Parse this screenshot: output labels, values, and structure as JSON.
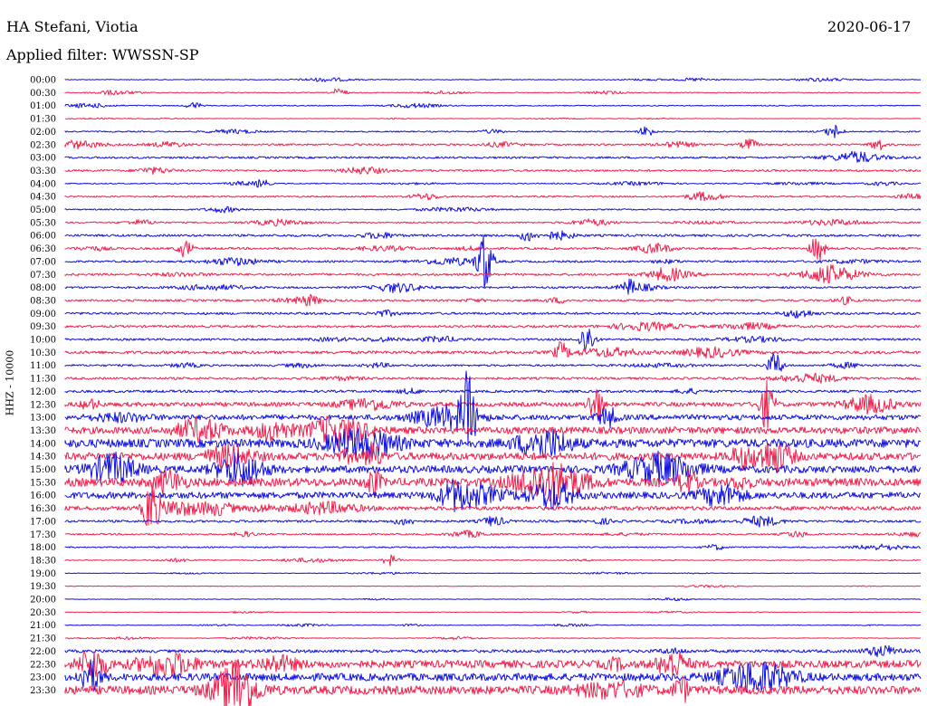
{
  "header": {
    "station": "HA Stefani, Viotia",
    "date": "2020-06-17",
    "filter": "Applied filter: WWSSN-SP"
  },
  "channel_label": "HHZ - 10000",
  "colors": {
    "trace_a": "#1010e0",
    "trace_b": "#f0204c"
  },
  "chart_data": {
    "type": "line",
    "rows": [
      "00:00",
      "00:30",
      "01:00",
      "01:30",
      "02:00",
      "02:30",
      "03:00",
      "03:30",
      "04:00",
      "04:30",
      "05:00",
      "05:30",
      "06:00",
      "06:30",
      "07:00",
      "07:30",
      "08:00",
      "08:30",
      "09:00",
      "09:30",
      "10:00",
      "10:30",
      "11:00",
      "11:30",
      "12:00",
      "12:30",
      "13:00",
      "13:30",
      "14:00",
      "14:30",
      "15:00",
      "15:30",
      "16:00",
      "16:30",
      "17:00",
      "17:30",
      "18:00",
      "18:30",
      "19:00",
      "19:30",
      "20:00",
      "20:30",
      "21:00",
      "21:30",
      "22:00",
      "22:30",
      "23:00",
      "23:30"
    ],
    "row_colors": [
      "blue",
      "red",
      "blue",
      "red",
      "blue",
      "red",
      "blue",
      "red",
      "blue",
      "red",
      "blue",
      "red",
      "blue",
      "red",
      "blue",
      "red",
      "blue",
      "red",
      "blue",
      "red",
      "blue",
      "red",
      "blue",
      "red",
      "blue",
      "red",
      "blue",
      "red",
      "blue",
      "red",
      "blue",
      "red",
      "blue",
      "red",
      "blue",
      "red",
      "blue",
      "red",
      "blue",
      "red",
      "blue",
      "red",
      "blue",
      "red",
      "blue",
      "red",
      "blue",
      "red"
    ],
    "activity": [
      0.5,
      0.5,
      0.6,
      0.3,
      0.8,
      1.1,
      1.2,
      1.2,
      0.7,
      1.0,
      0.8,
      0.9,
      1.4,
      1.3,
      1.2,
      1.4,
      1.2,
      1.3,
      1.4,
      1.4,
      1.3,
      1.8,
      1.2,
      1.4,
      1.5,
      2.6,
      3.2,
      4.2,
      5.2,
      4.6,
      4.4,
      5.0,
      4.0,
      2.4,
      1.4,
      1.0,
      0.8,
      0.6,
      0.3,
      0.3,
      0.4,
      0.3,
      0.4,
      0.4,
      1.8,
      4.6,
      4.6,
      5.2
    ],
    "events": [
      {
        "row": 1,
        "t": 0.32,
        "amp": 5
      },
      {
        "row": 2,
        "t": 0.15,
        "amp": 4
      },
      {
        "row": 4,
        "t": 0.68,
        "amp": 6
      },
      {
        "row": 4,
        "t": 0.9,
        "amp": 6
      },
      {
        "row": 5,
        "t": 0.8,
        "amp": 7
      },
      {
        "row": 5,
        "t": 0.95,
        "amp": 7
      },
      {
        "row": 8,
        "t": 0.23,
        "amp": 5
      },
      {
        "row": 12,
        "t": 0.54,
        "amp": 6
      },
      {
        "row": 13,
        "t": 0.14,
        "amp": 9
      },
      {
        "row": 13,
        "t": 0.88,
        "amp": 14
      },
      {
        "row": 14,
        "t": 0.49,
        "amp": 34
      },
      {
        "row": 16,
        "t": 0.66,
        "amp": 6
      },
      {
        "row": 20,
        "t": 0.61,
        "amp": 18
      },
      {
        "row": 21,
        "t": 0.58,
        "amp": 10
      },
      {
        "row": 22,
        "t": 0.83,
        "amp": 14
      },
      {
        "row": 25,
        "t": 0.62,
        "amp": 22
      },
      {
        "row": 25,
        "t": 0.82,
        "amp": 26
      },
      {
        "row": 26,
        "t": 0.47,
        "amp": 45
      },
      {
        "row": 29,
        "t": 0.36,
        "amp": 16
      },
      {
        "row": 31,
        "t": 0.36,
        "amp": 14
      },
      {
        "row": 33,
        "t": 0.1,
        "amp": 34
      },
      {
        "row": 37,
        "t": 0.38,
        "amp": 6
      },
      {
        "row": 47,
        "t": 0.72,
        "amp": 14
      }
    ]
  }
}
